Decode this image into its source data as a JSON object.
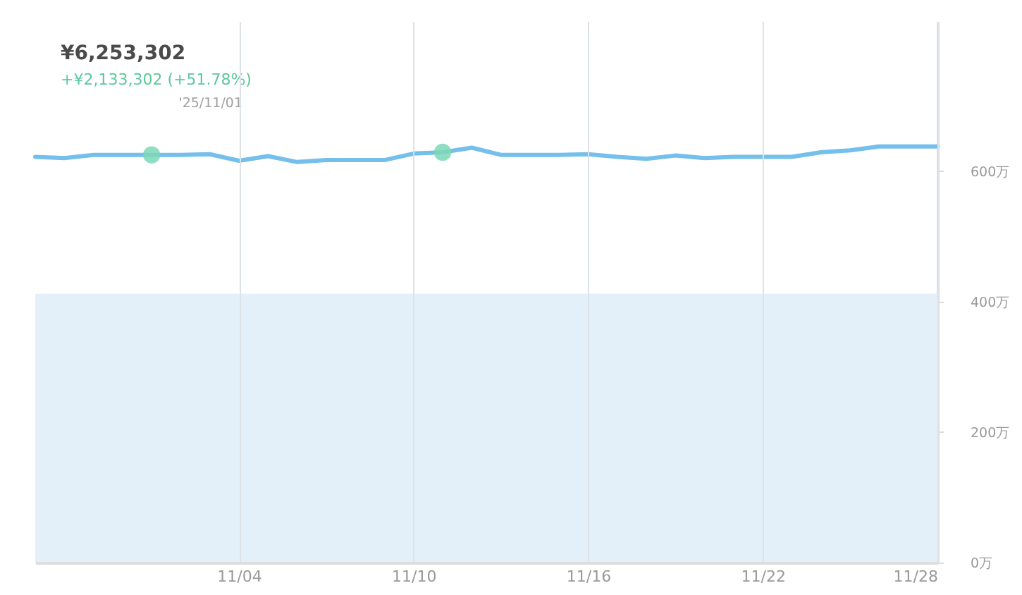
{
  "chart_data": {
    "type": "line",
    "annotations": [
      "¥6,253,302",
      "+¥2,133,302 (+51.78%)",
      "'25/11/01"
    ],
    "x": [
      "2025-10-28",
      "2025-10-29",
      "2025-10-30",
      "2025-10-31",
      "2025-11-01",
      "2025-11-02",
      "2025-11-03",
      "2025-11-04",
      "2025-11-05",
      "2025-11-06",
      "2025-11-07",
      "2025-11-08",
      "2025-11-09",
      "2025-11-10",
      "2025-11-11",
      "2025-11-12",
      "2025-11-13",
      "2025-11-14",
      "2025-11-15",
      "2025-11-16",
      "2025-11-17",
      "2025-11-18",
      "2025-11-19",
      "2025-11-20",
      "2025-11-21",
      "2025-11-22",
      "2025-11-23",
      "2025-11-24",
      "2025-11-25",
      "2025-11-26",
      "2025-11-27",
      "2025-11-28"
    ],
    "series": [
      {
        "type": "area",
        "color": "#e3f0f9",
        "values": [
          412,
          412,
          412,
          412,
          412,
          412,
          412,
          412,
          412,
          412,
          412,
          412,
          412,
          412,
          412,
          412,
          412,
          412,
          412,
          412,
          412,
          412,
          412,
          412,
          412,
          412,
          412,
          412,
          412,
          412,
          412,
          412
        ]
      },
      {
        "color": "#74bfeb",
        "values": [
          622,
          620,
          625,
          625,
          625,
          625,
          626,
          616,
          623,
          614,
          617,
          617,
          617,
          627,
          629,
          636,
          625,
          625,
          625,
          626,
          622,
          619,
          624,
          620,
          622,
          622,
          622,
          629,
          632,
          638,
          638,
          638
        ]
      },
      {
        "type": "scatter",
        "color": "#7dd8b6",
        "marker": "circle",
        "x": [
          "2025-11-01",
          "2025-11-11"
        ],
        "values": [
          625,
          629
        ]
      }
    ],
    "xlim": [
      "2025-10-28",
      "2025-11-28"
    ],
    "xticks": [
      {
        "value": "2025-11-04",
        "label": "11/04"
      },
      {
        "value": "2025-11-10",
        "label": "11/10"
      },
      {
        "value": "2025-11-16",
        "label": "11/16"
      },
      {
        "value": "2025-11-22",
        "label": "11/22"
      },
      {
        "value": "2025-11-28",
        "label": "11/28"
      }
    ],
    "ylim": [
      0,
      830
    ],
    "yticks": [
      {
        "value": 0,
        "label": "0万"
      },
      {
        "value": 200,
        "label": "200万"
      },
      {
        "value": 400,
        "label": "400万"
      },
      {
        "value": 600,
        "label": "600万"
      }
    ],
    "grid": "x",
    "marker": "none",
    "line_style": "solid"
  }
}
